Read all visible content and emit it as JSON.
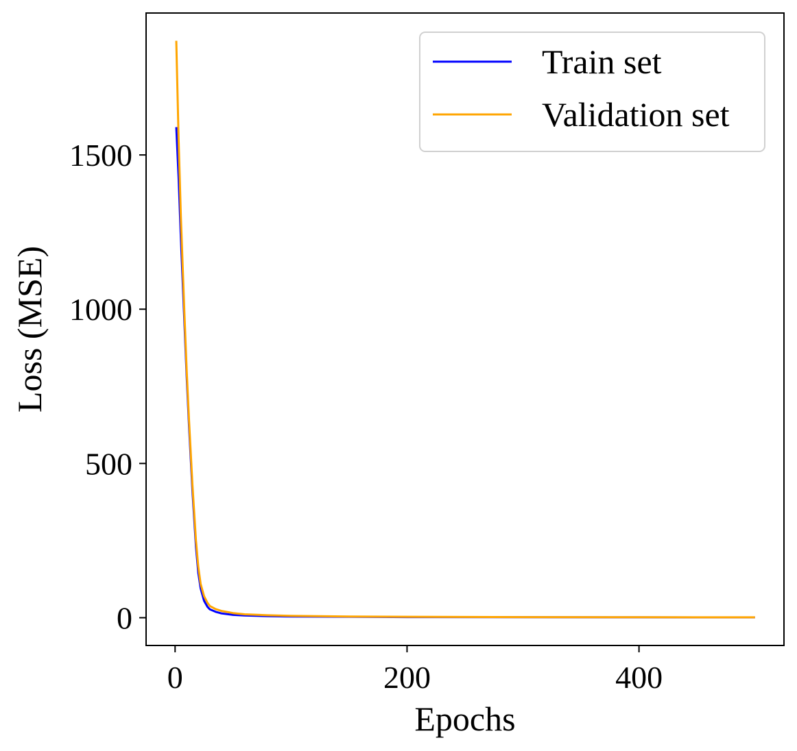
{
  "chart_data": {
    "type": "line",
    "title": "",
    "xlabel": "Epochs",
    "ylabel": "Loss (MSE)",
    "xlim": [
      -25,
      525
    ],
    "ylim": [
      -90,
      1960
    ],
    "xticks": [
      0,
      200,
      400
    ],
    "yticks": [
      0,
      500,
      1000,
      1500
    ],
    "grid": false,
    "legend_position": "top-right",
    "series": [
      {
        "name": "Train set",
        "color": "#0000ff",
        "x": [
          1,
          3,
          5,
          8,
          10,
          12,
          15,
          18,
          20,
          22,
          25,
          28,
          30,
          35,
          40,
          50,
          60,
          80,
          100,
          150,
          200,
          300,
          400,
          500
        ],
        "y": [
          1590,
          1430,
          1230,
          960,
          780,
          620,
          410,
          230,
          145,
          95,
          55,
          35,
          27,
          19,
          14,
          9,
          7,
          5,
          4,
          3,
          2,
          1.5,
          1.2,
          1
        ]
      },
      {
        "name": "Validation set",
        "color": "#ffa500",
        "x": [
          1,
          3,
          5,
          8,
          10,
          12,
          15,
          18,
          20,
          22,
          25,
          28,
          30,
          35,
          40,
          50,
          60,
          80,
          100,
          150,
          200,
          300,
          400,
          500
        ],
        "y": [
          1870,
          1560,
          1300,
          990,
          800,
          640,
          430,
          250,
          165,
          110,
          70,
          48,
          38,
          28,
          22,
          15,
          11,
          8,
          6,
          4,
          3,
          2,
          1.5,
          1.2
        ]
      }
    ]
  }
}
